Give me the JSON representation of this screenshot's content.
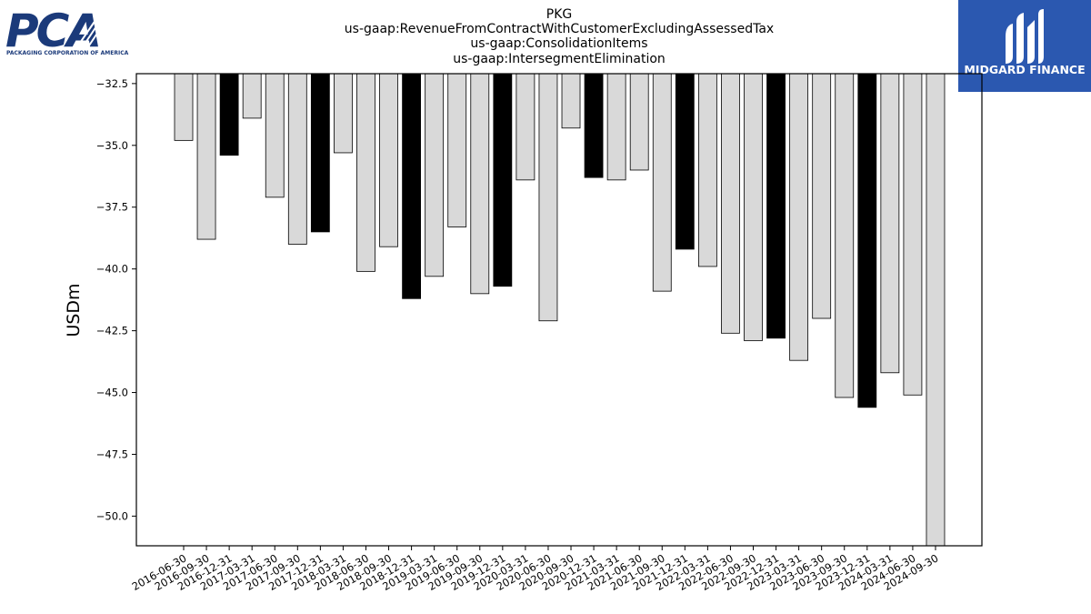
{
  "logos": {
    "left": {
      "wordmark": "PCA",
      "tagline": "PACKAGING CORPORATION OF AMERICA",
      "color": "#1b3a7a"
    },
    "right": {
      "name": "MIDGARD FINANCE",
      "background": "#2b58b0"
    }
  },
  "chart_data": {
    "type": "bar",
    "title_lines": [
      "PKG",
      "us-gaap:RevenueFromContractWithCustomerExcludingAssessedTax",
      "us-gaap:ConsolidationItems",
      "us-gaap:IntersegmentElimination"
    ],
    "xlabel": "",
    "ylabel": "USDm",
    "ylim": [
      -51.2,
      -32.1
    ],
    "yticks": [
      -32.5,
      -35.0,
      -37.5,
      -40.0,
      -42.5,
      -45.0,
      -47.5,
      -50.0
    ],
    "ytick_labels": [
      "−32.5",
      "−35.0",
      "−37.5",
      "−40.0",
      "−42.5",
      "−45.0",
      "−47.5",
      "−50.0"
    ],
    "grid": false,
    "bar_colors": {
      "quarter": "#d9d9d9",
      "year_end": "#000000"
    },
    "categories": [
      "2016-06-30",
      "2016-09-30",
      "2016-12-31",
      "2017-03-31",
      "2017-06-30",
      "2017-09-30",
      "2017-12-31",
      "2018-03-31",
      "2018-06-30",
      "2018-09-30",
      "2018-12-31",
      "2019-03-31",
      "2019-06-30",
      "2019-09-30",
      "2019-12-31",
      "2020-03-31",
      "2020-06-30",
      "2020-09-30",
      "2020-12-31",
      "2021-03-31",
      "2021-06-30",
      "2021-09-30",
      "2021-12-31",
      "2022-03-31",
      "2022-06-30",
      "2022-09-30",
      "2022-12-31",
      "2023-03-31",
      "2023-06-30",
      "2023-09-30",
      "2023-12-31",
      "2024-03-31",
      "2024-06-30",
      "2024-09-30"
    ],
    "values": [
      -34.8,
      -38.8,
      -35.4,
      -33.9,
      -37.1,
      -39.0,
      -38.5,
      -35.3,
      -40.1,
      -39.1,
      -41.2,
      -40.3,
      -38.3,
      -41.0,
      -40.7,
      -36.4,
      -42.1,
      -34.3,
      -36.3,
      -36.4,
      -36.0,
      -40.9,
      -39.2,
      -39.9,
      -42.6,
      -42.9,
      -42.8,
      -43.7,
      -42.0,
      -45.2,
      -45.6,
      -44.2,
      -45.1,
      -51.2
    ],
    "year_end_flags": [
      false,
      false,
      true,
      false,
      false,
      false,
      true,
      false,
      false,
      false,
      true,
      false,
      false,
      false,
      true,
      false,
      false,
      false,
      true,
      false,
      false,
      false,
      true,
      false,
      false,
      false,
      true,
      false,
      false,
      false,
      true,
      false,
      false,
      false
    ]
  }
}
